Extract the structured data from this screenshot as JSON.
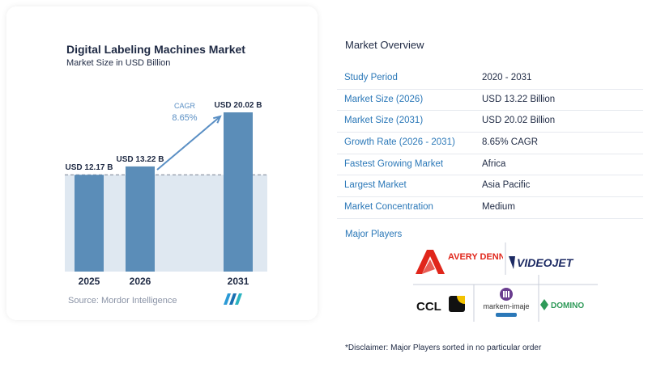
{
  "left_card": {
    "title": "Digital Labeling Machines Market",
    "subtitle": "Market Size in USD Billion",
    "source": "Source: Mordor Intelligence"
  },
  "chart_data": {
    "type": "bar",
    "title": "Digital Labeling Machines Market",
    "subtitle": "Market Size in USD Billion",
    "categories": [
      "2025",
      "2026",
      "2031"
    ],
    "values": [
      12.17,
      13.22,
      20.02
    ],
    "data_labels": [
      "USD 12.17 B",
      "USD 13.22 B",
      "USD 20.02 B"
    ],
    "cagr_label": "CAGR",
    "cagr_value": "8.65%",
    "bar_color": "#5b8db8",
    "ylim": [
      0,
      20.02
    ],
    "reference_line_value": 12.17,
    "grid": false
  },
  "overview": {
    "title": "Market Overview",
    "rows": [
      {
        "key": "Study Period",
        "value": "2020 - 2031"
      },
      {
        "key": "Market Size (2026)",
        "value": "USD 13.22 Billion"
      },
      {
        "key": "Market Size (2031)",
        "value": "USD 20.02 Billion"
      },
      {
        "key": "Growth Rate (2026 - 2031)",
        "value": "8.65% CAGR"
      },
      {
        "key": "Fastest Growing Market",
        "value": "Africa"
      },
      {
        "key": "Largest Market",
        "value": "Asia Pacific"
      },
      {
        "key": "Market Concentration",
        "value": "Medium"
      }
    ],
    "players_title": "Major Players",
    "players": [
      "AVERY DENNISON",
      "VIDEOJET",
      "CCL",
      "markem-imaje",
      "DOMINO"
    ],
    "disclaimer": "*Disclaimer: Major Players sorted in no particular order"
  },
  "colors": {
    "accent_blue": "#2b78b8",
    "bar": "#5b8db8",
    "avery_red": "#e0261b",
    "videojet_navy": "#1c2a63",
    "domino_green": "#2f9a59",
    "markem_purple": "#6a3d8f"
  }
}
